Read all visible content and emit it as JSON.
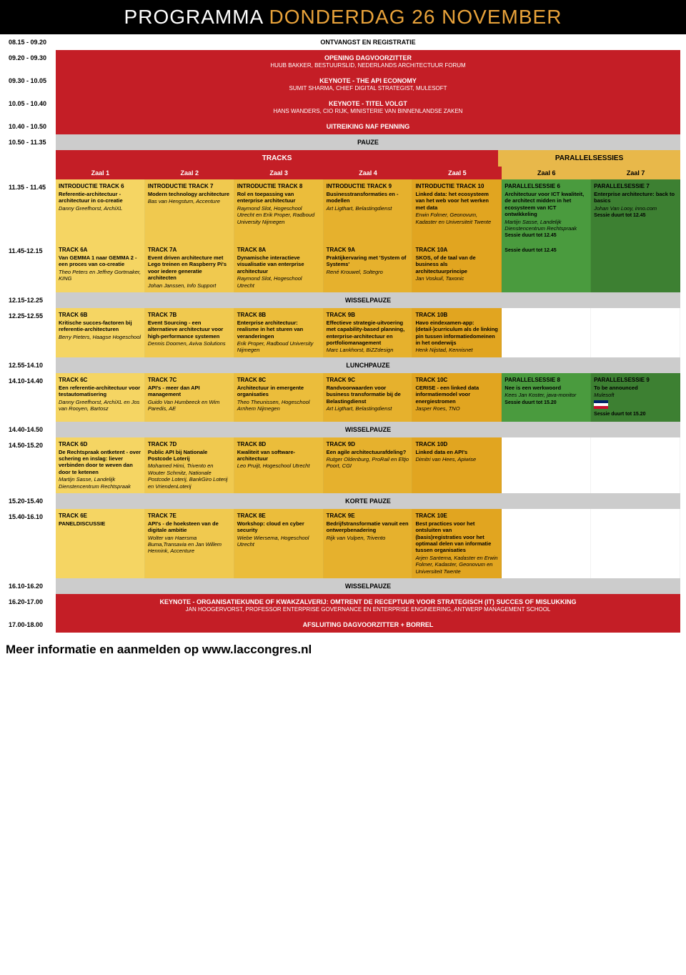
{
  "header": {
    "p1": "PROGRAMMA",
    "p2": "DONDERDAG 26 NOVEMBER"
  },
  "plenary": [
    {
      "time": "08.15 - 09.20",
      "cls": "white",
      "t": "ONTVANGST EN REGISTRATIE",
      "s": ""
    },
    {
      "time": "09.20 - 09.30",
      "cls": "red",
      "t": "OPENING DAGVOORZITTER",
      "s": "HUUB BAKKER, BESTUURSLID, NEDERLANDS ARCHITECTUUR FORUM"
    },
    {
      "time": "09.30 - 10.05",
      "cls": "red",
      "t": "KEYNOTE - THE API ECONOMY",
      "s": "SUMIT SHARMA, CHIEF DIGITAL STRATEGIST, MULESOFT"
    },
    {
      "time": "10.05 - 10.40",
      "cls": "red",
      "t": "KEYNOTE - TITEL VOLGT",
      "s": "HANS WANDERS, CIO RIJK, MINISTERIE VAN BINNENLANDSE ZAKEN"
    },
    {
      "time": "10.40 - 10.50",
      "cls": "red",
      "t": "UITREIKING NAF PENNING",
      "s": ""
    },
    {
      "time": "10.50 - 11.35",
      "cls": "gray",
      "t": "PAUZE",
      "s": ""
    }
  ],
  "tracksLabel": "TRACKS",
  "parallelLabel": "PARALLELSESSIES",
  "rooms": [
    "Zaal 1",
    "Zaal 2",
    "Zaal 3",
    "Zaal 4",
    "Zaal 5",
    "Zaal 6",
    "Zaal 7"
  ],
  "blocks": [
    {
      "time": "11.35 - 11.45",
      "cells": [
        {
          "c": "y1",
          "tn": "INTRODUCTIE TRACK 6",
          "tt": "Referentie-architectuur - architectuur in co-creatie",
          "sp": "Danny Greefhorst, ArchiXL"
        },
        {
          "c": "y2",
          "tn": "INTRODUCTIE TRACK 7",
          "tt": "Modern technology architecture",
          "sp": "Bas van Hengstum, Accenture"
        },
        {
          "c": "y3",
          "tn": "INTRODUCTIE TRACK 8",
          "tt": "Rol en toepassing van enterprise architectuur",
          "sp": "Raymond Slot, Hogeschool Utrecht en Erik Proper, Radboud University Nijmegen"
        },
        {
          "c": "y4",
          "tn": "INTRODUCTIE TRACK 9",
          "tt": "Businesstransformaties en -modellen",
          "sp": "Art Ligthart, Belastingdienst"
        },
        {
          "c": "y5",
          "tn": "INTRODUCTIE TRACK 10",
          "tt": "Linked data: het ecosysteem van het web voor het werken met data",
          "sp": "Erwin Folmer, Geonovum, Kadaster en Universiteit Twente"
        },
        {
          "c": "g1",
          "tn": "PARALLELSESSIE 6",
          "tt": "Architectuur voor ICT kwaliteit, de architect midden in het ecosysteem van ICT ontwikkeling",
          "sp": "Martijn Sasse, Landelijk Dienstencentrum Rechtspraak",
          "dur": "Sessie duurt tot 12.45"
        },
        {
          "c": "g2",
          "tn": "PARALLELSESSIE 7",
          "tt": "Enterprise architecture: back to basics",
          "sp": "Johan Van Looy, inno.com",
          "dur": "Sessie duurt tot 12.45"
        }
      ]
    },
    {
      "time": "11.45-12.15",
      "cells": [
        {
          "c": "y1",
          "tn": "TRACK 6A",
          "tt": "Van GEMMA 1 naar GEMMA 2 - een proces van co-creatie",
          "sp": "Theo Peters en Jeffrey Gortmaker, KING"
        },
        {
          "c": "y2",
          "tn": "TRACK 7A",
          "tt": "Event driven architecture met Lego treinen en Raspberry Pi's voor iedere generatie architecten",
          "sp": "Johan Janssen, Info Support"
        },
        {
          "c": "y3",
          "tn": "TRACK 8A",
          "tt": "Dynamische interactieve visualisatie van enterprise architectuur",
          "sp": "Raymond Slot, Hogeschool Utrecht"
        },
        {
          "c": "y4",
          "tn": "TRACK 9A",
          "tt": "Praktijkervaring met 'System of Systems'",
          "sp": "René Krouwel, Soltegro"
        },
        {
          "c": "y5",
          "tn": "TRACK 10A",
          "tt": "SKOS, of de taal van de business als architectuurprincipe",
          "sp": "Jan Voskuil, Taxonic"
        },
        {
          "c": "g1",
          "tn": "",
          "tt": "",
          "sp": "",
          "dur": "Sessie duurt tot 12.45"
        },
        {
          "c": "g2",
          "tn": "",
          "tt": "",
          "sp": ""
        }
      ]
    }
  ],
  "break1": {
    "time": "12.15-12.25",
    "t": "WISSELPAUZE"
  },
  "block2": {
    "time": "12.25-12.55",
    "cells": [
      {
        "c": "y1",
        "tn": "TRACK 6B",
        "tt": "Kritische succes-factoren bij referentie-architecturen",
        "sp": "Berry Pieters, Haagse Hogeschool"
      },
      {
        "c": "y2",
        "tn": "TRACK 7B",
        "tt": "Event Sourcing - een alternatieve architectuur voor high-performance systemen",
        "sp": "Dennis Doomen, Aviva Solutions"
      },
      {
        "c": "y3",
        "tn": "TRACK 8B",
        "tt": "Enterprise architectuur: realisme in het sturen van veranderingen",
        "sp": "Erik Proper, Radboud University Nijmegen"
      },
      {
        "c": "y4",
        "tn": "TRACK 9B",
        "tt": "Effectieve strategie-uitvoering met capability-based planning, enterprise-architectuur en portfoliomanagement",
        "sp": "Marc Lankhorst, BiZZdesign"
      },
      {
        "c": "y5",
        "tn": "TRACK 10B",
        "tt": "Havo eindexamen-app: (detail-)curriculum als de linking pin tussen informatiedomeinen in het onderwijs",
        "sp": "Henk Nijstad, Kennisnet"
      }
    ]
  },
  "lunch": {
    "time": "12.55-14.10",
    "t": "LUNCHPAUZE"
  },
  "block3": {
    "time": "14.10-14.40",
    "cells": [
      {
        "c": "y1",
        "tn": "TRACK 6C",
        "tt": "Een referentie-architectuur voor testautomatisering",
        "sp": "Danny Greefhorst, ArchiXL en Jos van Rooyen, Bartosz"
      },
      {
        "c": "y2",
        "tn": "TRACK 7C",
        "tt": "API's - meer dan API management",
        "sp": "Guido Van Humbeeck en Wim Paredis, AE"
      },
      {
        "c": "y3",
        "tn": "TRACK 8C",
        "tt": "Architectuur in emergente organisaties",
        "sp": "Theo Theunissen, Hogeschool Arnhem Nijmegen"
      },
      {
        "c": "y4",
        "tn": "TRACK 9C",
        "tt": "Randvoorwaarden voor business transformatie bij de Belastingdienst",
        "sp": "Art Ligthart, Belastingdienst"
      },
      {
        "c": "y5",
        "tn": "TRACK 10C",
        "tt": "CERISE - een linked data informatiemodel voor energiestromen",
        "sp": "Jasper Roes, TNO"
      },
      {
        "c": "g1",
        "tn": "PARALLELSESSIE 8",
        "tt": "Nee is een werkwoord",
        "sp": "Kees Jan Koster, java-monitor",
        "dur": "Sessie duurt tot 15.20"
      },
      {
        "c": "g2",
        "tn": "PARALLELSESSIE 9",
        "tt": "To be announced",
        "sp": "Mulesoft",
        "dur": "Sessie duurt tot 15.20",
        "flag": true
      }
    ]
  },
  "break2": {
    "time": "14.40-14.50",
    "t": "WISSELPAUZE"
  },
  "block4": {
    "time": "14.50-15.20",
    "cells": [
      {
        "c": "y1",
        "tn": "TRACK 6D",
        "tt": "De Rechtspraak ontketent - over schering en inslag: liever verbinden door te weven dan door te ketenen",
        "sp": "Martijn Sasse, Landelijk Dienstencentrum Rechtspraak"
      },
      {
        "c": "y2",
        "tn": "TRACK 7D",
        "tt": "Public API bij Nationale Postcode Loterij",
        "sp": "Mohamed Himi, Trivento en Wouter Schmitz, Nationale Postcode Loterij, BankGiro Loterij en VriendenLoterij"
      },
      {
        "c": "y3",
        "tn": "TRACK 8D",
        "tt": "Kwaliteit van software-architectuur",
        "sp": "Leo Pruijt, Hogeschool Utrecht"
      },
      {
        "c": "y4",
        "tn": "TRACK 9D",
        "tt": "Een agile architectuurafdeling?",
        "sp": "Rutger Oldenburg, ProRail en Eltjo Poort, CGI"
      },
      {
        "c": "y5",
        "tn": "TRACK 10D",
        "tt": "Linked data en API's",
        "sp": "Dimitri van Hees, Apiwise"
      }
    ]
  },
  "break3": {
    "time": "15.20-15.40",
    "t": "KORTE PAUZE"
  },
  "block5": {
    "time": "15.40-16.10",
    "cells": [
      {
        "c": "y1",
        "tn": "TRACK 6E",
        "tt": "PANELDISCUSSIE",
        "sp": ""
      },
      {
        "c": "y2",
        "tn": "TRACK 7E",
        "tt": "API's - de hoeksteen van de digitale ambitie",
        "sp": "Wolter van Haersma Buma,Transavia en Jan Willem Hennink, Accenture"
      },
      {
        "c": "y3",
        "tn": "TRACK 8E",
        "tt": "Workshop: cloud en cyber security",
        "sp": "Wiebe Wiersema, Hogeschool Utrecht"
      },
      {
        "c": "y4",
        "tn": "TRACK 9E",
        "tt": "Bedrijfstransformatie vanuit een ontwerpbenadering",
        "sp": "Rijk van Vulpen, Trivento"
      },
      {
        "c": "y5",
        "tn": "TRACK 10E",
        "tt": "Best practices voor het ontsluiten van (basis)registraties voor het optimaal delen van informatie tussen organisaties",
        "sp": "Arjen Santema, Kadaster en Erwin Folmer, Kadaster, Geonovum en Universiteit Twente"
      }
    ]
  },
  "break4": {
    "time": "16.10-16.20",
    "t": "WISSELPAUZE"
  },
  "closing": [
    {
      "time": "16.20-17.00",
      "cls": "red",
      "t": "KEYNOTE - ORGANISATIEKUNDE OF KWAKZALVERIJ: OMTRENT DE RECEPTUUR VOOR STRATEGISCH (IT) SUCCES OF MISLUKKING",
      "s": "JAN HOOGERVORST, PROFESSOR ENTERPRISE GOVERNANCE EN ENTERPRISE ENGINEERING, ANTWERP MANAGEMENT SCHOOL"
    },
    {
      "time": "17.00-18.00",
      "cls": "red",
      "t": "AFSLUITING DAGVOORZITTER + BORREL",
      "s": ""
    }
  ],
  "footer": "Meer informatie en aanmelden op www.laccongres.nl"
}
